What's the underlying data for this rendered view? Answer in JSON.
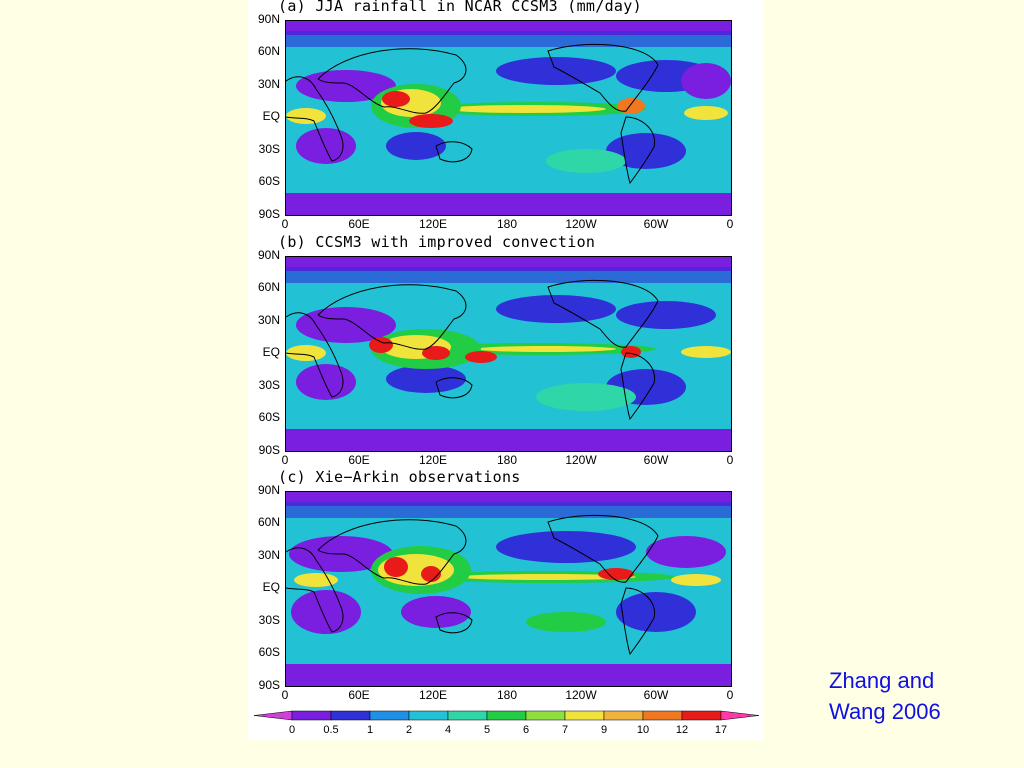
{
  "panels": [
    {
      "title": "(a) JJA rainfall in NCAR CCSM3 (mm/day)"
    },
    {
      "title": "(b) CCSM3 with improved convection"
    },
    {
      "title": "(c) Xie−Arkin observations"
    }
  ],
  "lat_labels": [
    "90N",
    "60N",
    "30N",
    "EQ",
    "30S",
    "60S",
    "90S"
  ],
  "lon_labels": [
    "0",
    "60E",
    "120E",
    "180",
    "120W",
    "60W",
    "0"
  ],
  "colorbar": {
    "labels": [
      "0",
      "0.5",
      "1",
      "2",
      "4",
      "5",
      "6",
      "7",
      "9",
      "10",
      "12",
      "17"
    ],
    "colors": [
      "#d040d8",
      "#7a1ee0",
      "#3030d8",
      "#1e90e8",
      "#22c2d4",
      "#2ed6a8",
      "#22cc44",
      "#8ee040",
      "#f0e43c",
      "#f0b43c",
      "#f07820",
      "#e81a1a",
      "#ff3aa8"
    ]
  },
  "credit": {
    "line1": "Zhang and",
    "line2": "Wang 2006"
  }
}
